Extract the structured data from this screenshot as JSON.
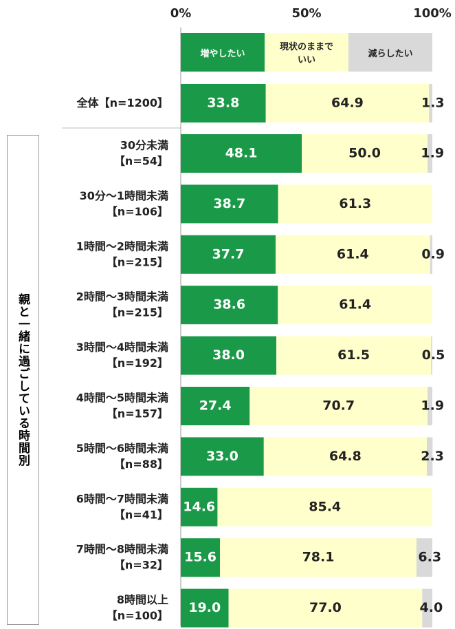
{
  "chart_data": {
    "type": "stacked_bar_horizontal",
    "group_label": "親と一緒に過ごしている時間別",
    "categories": [
      [
        "全体【n=1200】"
      ],
      [
        "30分未満",
        "【n=54】"
      ],
      [
        "30分～1時間未満",
        "【n=106】"
      ],
      [
        "1時間～2時間未満",
        "【n=215】"
      ],
      [
        "2時間～3時間未満",
        "【n=215】"
      ],
      [
        "3時間～4時間未満",
        "【n=192】"
      ],
      [
        "4時間～5時間未満",
        "【n=157】"
      ],
      [
        "5時間～6時間未満",
        "【n=88】"
      ],
      [
        "6時間～7時間未満",
        "【n=41】"
      ],
      [
        "7時間～8時間未満",
        "【n=32】"
      ],
      [
        "8時間以上",
        "【n=100】"
      ]
    ],
    "series": [
      {
        "name": "増やしたい",
        "color": "#1a9a48",
        "values": [
          33.8,
          48.1,
          38.7,
          37.7,
          38.6,
          38.0,
          27.4,
          33.0,
          14.6,
          15.6,
          19.0
        ],
        "value_labels": [
          "33.8",
          "48.1",
          "38.7",
          "37.7",
          "38.6",
          "38.0",
          "27.4",
          "33.0",
          "14.6",
          "15.6",
          "19.0"
        ]
      },
      {
        "name": "現状のままでいい",
        "color": "#ffffcc",
        "values": [
          64.9,
          50.0,
          61.3,
          61.4,
          61.4,
          61.5,
          70.7,
          64.8,
          85.4,
          78.1,
          77.0
        ],
        "value_labels": [
          "64.9",
          "50.0",
          "61.3",
          "61.4",
          "61.4",
          "61.5",
          "70.7",
          "64.8",
          "85.4",
          "78.1",
          "77.0"
        ]
      },
      {
        "name": "減らしたい",
        "color": "#d9d9d9",
        "values": [
          1.3,
          1.9,
          null,
          0.9,
          null,
          0.5,
          1.9,
          2.3,
          null,
          6.3,
          4.0
        ],
        "value_labels": [
          "1.3",
          "1.9",
          null,
          "0.9",
          null,
          "0.5",
          "1.9",
          "2.3",
          null,
          "6.3",
          "4.0"
        ]
      }
    ],
    "xlim": [
      0,
      100
    ],
    "xticks": [
      {
        "value": 0,
        "label": "0%"
      },
      {
        "value": 50,
        "label": "50%"
      },
      {
        "value": 100,
        "label": "100%"
      }
    ]
  }
}
